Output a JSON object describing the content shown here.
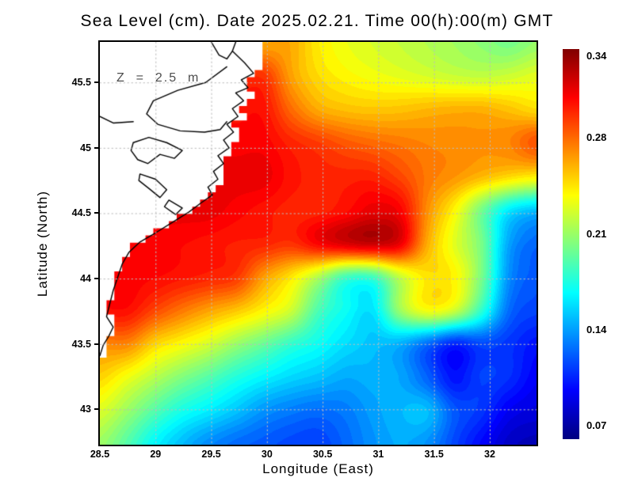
{
  "title": "Sea Level (cm). Date 2025.02.21. Time 00(h):00(m) GMT",
  "annotation": "Z  =  2.5  m",
  "colors": {
    "land_fill": "#ffffff",
    "coast_stroke": "#000000",
    "grid_color": "#bdbdbd",
    "frame_color": "#000000"
  },
  "chart_data": {
    "type": "heatmap",
    "title": "Sea Level (cm). Date 2025.02.21. Time 00(h):00(m) GMT",
    "xlabel": "Longitude (East)",
    "ylabel": "Latitude (North)",
    "x_range": [
      28.5,
      32.42
    ],
    "y_range": [
      42.73,
      45.81
    ],
    "x_ticks": [
      28.5,
      29,
      29.5,
      30,
      30.5,
      31,
      31.5,
      32
    ],
    "y_ticks": [
      43,
      43.5,
      44,
      44.5,
      45,
      45.5
    ],
    "grid": true,
    "colormap": "jet",
    "colorbar": {
      "min": 0.06,
      "max": 0.345,
      "ticks": [
        0.34,
        0.28,
        0.21,
        0.14,
        0.07
      ]
    },
    "lon": [
      28.5,
      28.75,
      28.99,
      29.24,
      29.48,
      29.73,
      29.97,
      30.22,
      30.46,
      30.71,
      30.95,
      31.2,
      31.44,
      31.69,
      31.93,
      32.18,
      32.42
    ],
    "lat": [
      45.81,
      45.55,
      45.3,
      45.04,
      44.78,
      44.53,
      44.27,
      44.01,
      43.75,
      43.5,
      43.24,
      42.99,
      42.73
    ],
    "values": [
      [
        null,
        null,
        null,
        null,
        null,
        null,
        null,
        0.262,
        0.243,
        0.233,
        0.227,
        0.222,
        0.217,
        0.212,
        0.206,
        0.2,
        0.208
      ],
      [
        null,
        null,
        null,
        null,
        null,
        null,
        0.295,
        0.265,
        0.248,
        0.24,
        0.235,
        0.231,
        0.227,
        0.223,
        0.221,
        0.224,
        0.23
      ],
      [
        null,
        null,
        null,
        null,
        null,
        null,
        0.305,
        0.28,
        0.262,
        0.256,
        0.254,
        0.255,
        0.258,
        0.26,
        0.26,
        0.255,
        0.248
      ],
      [
        null,
        null,
        null,
        null,
        null,
        0.31,
        0.31,
        0.3,
        0.293,
        0.285,
        0.28,
        0.276,
        0.272,
        0.27,
        0.268,
        0.272,
        0.286
      ],
      [
        null,
        null,
        null,
        null,
        null,
        0.315,
        0.315,
        0.305,
        0.3,
        0.3,
        0.3,
        0.29,
        0.276,
        0.268,
        0.258,
        0.249,
        0.243
      ],
      [
        null,
        null,
        null,
        null,
        0.315,
        0.31,
        0.305,
        0.3,
        0.3,
        0.306,
        0.315,
        0.31,
        0.27,
        0.24,
        0.2,
        0.163,
        0.15
      ],
      [
        null,
        0.312,
        0.31,
        0.308,
        0.305,
        0.302,
        0.3,
        0.296,
        0.31,
        0.32,
        0.325,
        0.315,
        0.262,
        0.23,
        0.2,
        0.142,
        0.124
      ],
      [
        null,
        0.31,
        0.308,
        0.304,
        0.3,
        0.294,
        0.266,
        0.245,
        0.217,
        0.186,
        0.185,
        0.222,
        0.245,
        0.24,
        0.2,
        0.136,
        0.12
      ],
      [
        null,
        0.306,
        0.29,
        0.276,
        0.264,
        0.254,
        0.24,
        0.224,
        0.188,
        0.17,
        0.16,
        0.21,
        0.235,
        0.224,
        0.18,
        0.126,
        0.114
      ],
      [
        null,
        0.272,
        0.25,
        0.238,
        0.226,
        0.21,
        0.196,
        0.181,
        0.17,
        0.158,
        0.15,
        0.145,
        0.126,
        0.106,
        0.116,
        0.11,
        0.1
      ],
      [
        0.25,
        0.234,
        0.218,
        0.203,
        0.19,
        0.176,
        0.165,
        0.156,
        0.15,
        0.143,
        0.145,
        0.142,
        0.123,
        0.1,
        0.113,
        0.108,
        0.094
      ],
      [
        0.228,
        0.21,
        0.19,
        0.173,
        0.162,
        0.15,
        0.137,
        0.13,
        0.126,
        0.13,
        0.14,
        0.147,
        0.148,
        0.12,
        0.11,
        0.092,
        0.086
      ],
      [
        0.21,
        0.19,
        0.166,
        0.148,
        0.134,
        0.125,
        0.12,
        0.115,
        0.113,
        0.124,
        0.136,
        0.143,
        0.136,
        0.115,
        0.096,
        0.08,
        0.075
      ]
    ],
    "contour_step": 0.005,
    "land": {
      "mask_boundary": [
        [
          30.02,
          45.81
        ],
        [
          29.93,
          45.7
        ],
        [
          29.98,
          45.62
        ],
        [
          29.9,
          45.55
        ],
        [
          29.82,
          45.47
        ],
        [
          29.86,
          45.4
        ],
        [
          29.76,
          45.32
        ],
        [
          29.8,
          45.24
        ],
        [
          29.7,
          45.16
        ],
        [
          29.76,
          45.08
        ],
        [
          29.67,
          45.01
        ],
        [
          29.72,
          44.95
        ],
        [
          29.62,
          44.88
        ],
        [
          29.58,
          44.8
        ],
        [
          29.6,
          44.72
        ],
        [
          29.52,
          44.65
        ],
        [
          29.44,
          44.59
        ],
        [
          29.34,
          44.53
        ],
        [
          29.2,
          44.45
        ],
        [
          29.05,
          44.37
        ],
        [
          28.9,
          44.31
        ],
        [
          28.8,
          44.25
        ],
        [
          28.73,
          44.16
        ],
        [
          28.68,
          44.06
        ],
        [
          28.64,
          43.95
        ],
        [
          28.6,
          43.84
        ],
        [
          28.58,
          43.73
        ],
        [
          28.64,
          43.64
        ],
        [
          28.6,
          43.56
        ],
        [
          28.55,
          43.47
        ],
        [
          28.52,
          43.36
        ]
      ],
      "mask_step": [
        0.07,
        0.055
      ],
      "coastline": [
        [
          29.72,
          45.81
        ],
        [
          29.69,
          45.74
        ],
        [
          29.8,
          45.65
        ],
        [
          29.88,
          45.57
        ],
        [
          29.77,
          45.52
        ],
        [
          29.83,
          45.46
        ],
        [
          29.72,
          45.42
        ],
        [
          29.79,
          45.36
        ],
        [
          29.69,
          45.3
        ],
        [
          29.74,
          45.24
        ],
        [
          29.64,
          45.18
        ],
        [
          29.7,
          45.12
        ],
        [
          29.61,
          45.06
        ],
        [
          29.66,
          45.0
        ],
        [
          29.56,
          44.94
        ],
        [
          29.61,
          44.88
        ],
        [
          29.52,
          44.82
        ],
        [
          29.56,
          44.76
        ],
        [
          29.47,
          44.7
        ],
        [
          29.51,
          44.64
        ],
        [
          29.41,
          44.58
        ],
        [
          29.3,
          44.51
        ],
        [
          29.15,
          44.43
        ],
        [
          29.0,
          44.35
        ],
        [
          28.86,
          44.28
        ],
        [
          28.76,
          44.2
        ],
        [
          28.7,
          44.11
        ],
        [
          28.66,
          44.01
        ],
        [
          28.62,
          43.91
        ],
        [
          28.59,
          43.81
        ],
        [
          28.56,
          43.71
        ],
        [
          28.62,
          43.63
        ],
        [
          28.58,
          43.56
        ],
        [
          28.53,
          43.49
        ],
        [
          28.5,
          43.41
        ]
      ],
      "details": [
        [
          [
            29.5,
            45.81
          ],
          [
            29.57,
            45.71
          ],
          [
            29.64,
            45.68
          ],
          [
            29.69,
            45.74
          ]
        ],
        [
          [
            29.64,
            45.62
          ],
          [
            29.45,
            45.5
          ],
          [
            29.2,
            45.44
          ],
          [
            28.98,
            45.36
          ],
          [
            28.92,
            45.26
          ],
          [
            29.02,
            45.18
          ],
          [
            29.22,
            45.13
          ],
          [
            29.44,
            45.12
          ],
          [
            29.58,
            45.14
          ],
          [
            29.64,
            45.2
          ]
        ],
        [
          [
            28.5,
            45.24
          ],
          [
            28.62,
            45.19
          ],
          [
            28.8,
            45.2
          ]
        ],
        [
          [
            28.8,
            45.04
          ],
          [
            28.94,
            45.08
          ],
          [
            29.1,
            45.04
          ],
          [
            29.24,
            44.98
          ],
          [
            29.17,
            44.92
          ],
          [
            29.04,
            44.95
          ],
          [
            28.93,
            44.88
          ],
          [
            28.84,
            44.91
          ],
          [
            28.78,
            44.98
          ],
          [
            28.8,
            45.04
          ]
        ],
        [
          [
            28.86,
            44.8
          ],
          [
            29.0,
            44.76
          ],
          [
            29.1,
            44.68
          ],
          [
            29.04,
            44.62
          ],
          [
            28.94,
            44.69
          ],
          [
            28.85,
            44.75
          ],
          [
            28.86,
            44.8
          ]
        ],
        [
          [
            29.12,
            44.6
          ],
          [
            29.24,
            44.54
          ],
          [
            29.18,
            44.49
          ],
          [
            29.08,
            44.55
          ],
          [
            29.12,
            44.6
          ]
        ]
      ]
    }
  }
}
